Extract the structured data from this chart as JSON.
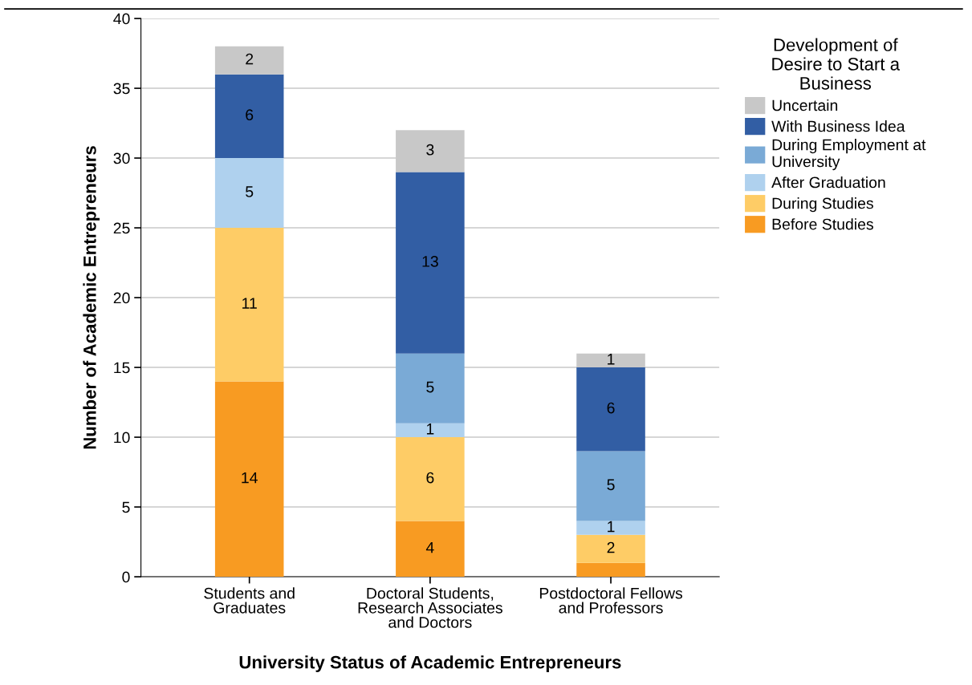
{
  "chart_data": {
    "type": "bar",
    "stacked": true,
    "xlabel": "University Status of Academic Entrepreneurs",
    "ylabel": "Number of Academic Entrepreneurs",
    "legend_title": "Development of\nDesire to Start a\nBusiness",
    "categories": [
      "Students and\nGraduates",
      "Doctoral Students,\nResearch Associates\nand Doctors",
      "Postdoctoral Fellows\nand Professors"
    ],
    "series": [
      {
        "name": "Before Studies",
        "color": "#f89b22",
        "values": [
          14,
          4,
          1
        ],
        "value_labels": [
          "14",
          "4",
          null
        ]
      },
      {
        "name": "During Studies",
        "color": "#fecc66",
        "values": [
          11,
          6,
          2
        ],
        "value_labels": [
          "11",
          "6",
          "2"
        ]
      },
      {
        "name": "After Graduation",
        "color": "#afd1ee",
        "values": [
          5,
          1,
          1
        ],
        "value_labels": [
          "5",
          "1",
          "1"
        ]
      },
      {
        "name": "During Employment at\nUniversity",
        "color": "#7aaad6",
        "values": [
          0,
          5,
          5
        ],
        "value_labels": [
          null,
          "5",
          "5"
        ]
      },
      {
        "name": "With Business Idea",
        "color": "#325ea4",
        "values": [
          6,
          13,
          6
        ],
        "value_labels": [
          "6",
          "13",
          "6"
        ]
      },
      {
        "name": "Uncertain",
        "color": "#c8c8c8",
        "values": [
          2,
          3,
          1
        ],
        "value_labels": [
          "2",
          "3",
          "1"
        ]
      }
    ],
    "ylim": [
      0,
      40
    ],
    "yticks": [
      0,
      5,
      10,
      15,
      20,
      25,
      30,
      35,
      40
    ],
    "grid": "y",
    "legend": "right"
  }
}
